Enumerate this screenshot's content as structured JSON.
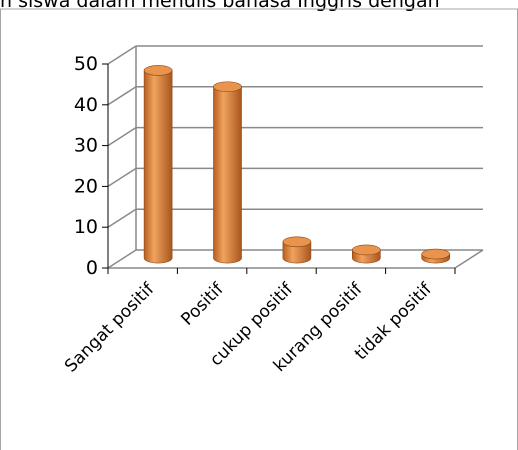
{
  "caption_text": "n siswa dalam menulis bahasa Inggris dengan",
  "chart_data": {
    "type": "bar",
    "categories": [
      "Sangat positif",
      "Positif",
      "cukup positif",
      "kurang positif",
      "tidak positif"
    ],
    "values": [
      46,
      42,
      4,
      2,
      1
    ],
    "ylim": [
      0,
      50
    ],
    "yticks": [
      "0",
      "10",
      "20",
      "30",
      "40",
      "50"
    ],
    "grid": true,
    "legend": "none",
    "colors": {
      "bar_fill": "#d67b33",
      "bar_light": "#f2a35e",
      "bar_dark": "#a9561d",
      "bar_top": "#e8944c",
      "grid": "#898989",
      "frame": "#a6a6a6"
    }
  }
}
